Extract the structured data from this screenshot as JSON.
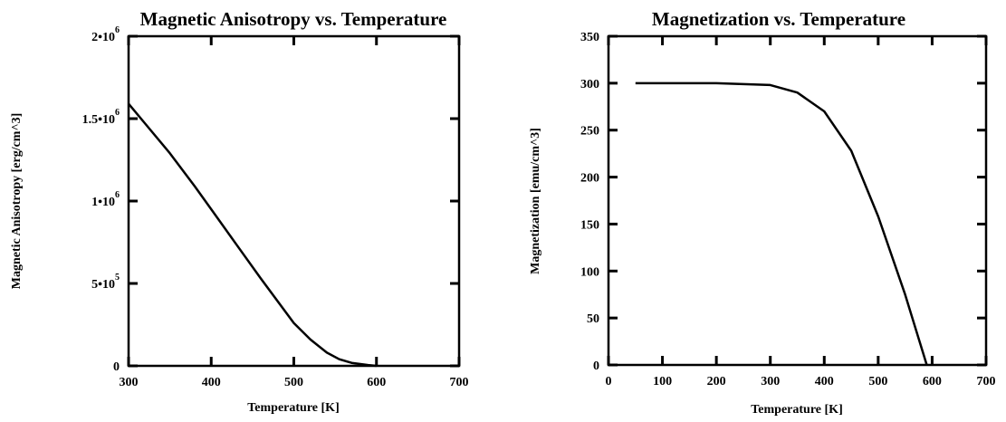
{
  "chart_data": [
    {
      "type": "line",
      "title": "Magnetic Anisotropy vs. Temperature",
      "xlabel": "Temperature [K]",
      "ylabel": "Magnetic Anisotropy [erg/cm^3]",
      "xlim": [
        300,
        700
      ],
      "ylim": [
        0,
        2000000
      ],
      "x_ticks": [
        300,
        400,
        500,
        600,
        700
      ],
      "x_tick_labels": [
        "300",
        "400",
        "500",
        "600",
        "700"
      ],
      "y_ticks": [
        0,
        500000,
        1000000,
        1500000,
        2000000
      ],
      "y_tick_labels": [
        {
          "mantissa": "0",
          "exponent": ""
        },
        {
          "mantissa": "5•10",
          "exponent": "5"
        },
        {
          "mantissa": "1•10",
          "exponent": "6"
        },
        {
          "mantissa": "1.5•10",
          "exponent": "6"
        },
        {
          "mantissa": "2•10",
          "exponent": "6"
        }
      ],
      "grid": false,
      "series": [
        {
          "x": [
            300,
            320,
            350,
            380,
            400,
            430,
            460,
            500,
            520,
            540,
            555,
            570,
            590,
            600
          ],
          "y": [
            1590000,
            1470000,
            1290000,
            1090000,
            950000,
            740000,
            530000,
            260000,
            160000,
            80000,
            40000,
            18000,
            5000,
            0
          ]
        }
      ]
    },
    {
      "type": "line",
      "title": "Magnetization vs. Temperature",
      "xlabel": "Temperature [K]",
      "ylabel": "Magnetization [emu/cm^3]",
      "xlim": [
        0,
        700
      ],
      "ylim": [
        0,
        350
      ],
      "x_ticks": [
        0,
        100,
        200,
        300,
        400,
        500,
        600,
        700
      ],
      "x_tick_labels": [
        "0",
        "100",
        "200",
        "300",
        "400",
        "500",
        "600",
        "700"
      ],
      "y_ticks": [
        0,
        50,
        100,
        150,
        200,
        250,
        300,
        350
      ],
      "y_tick_labels": [
        "0",
        "50",
        "100",
        "150",
        "200",
        "250",
        "300",
        "350"
      ],
      "grid": false,
      "series": [
        {
          "x": [
            50,
            100,
            200,
            300,
            350,
            400,
            450,
            500,
            550,
            590
          ],
          "y": [
            300,
            300,
            300,
            298,
            290,
            270,
            228,
            158,
            75,
            0
          ]
        }
      ]
    }
  ]
}
